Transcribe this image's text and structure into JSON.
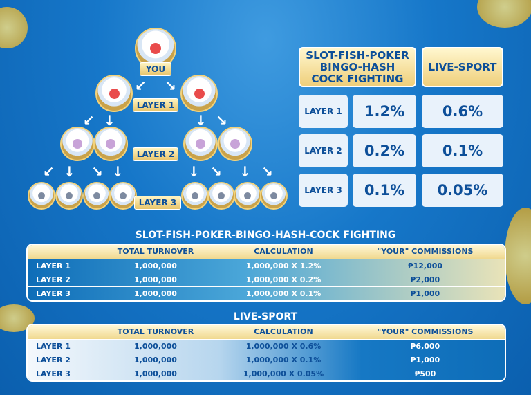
{
  "tree": {
    "you_label": "YOU",
    "layer1_label": "LAYER 1",
    "layer2_label": "LAYER 2",
    "layer3_label": "LAYER 3"
  },
  "rate_table": {
    "headers": [
      "SLOT-FISH-POKER BINGO-HASH COCK FIGHTING",
      "LIVE-SPORT"
    ],
    "rows": [
      {
        "layer": "LAYER 1",
        "slot": "1.2%",
        "live": "0.6%"
      },
      {
        "layer": "LAYER 2",
        "slot": "0.2%",
        "live": "0.1%"
      },
      {
        "layer": "LAYER 3",
        "slot": "0.1%",
        "live": "0.05%"
      }
    ]
  },
  "tables": [
    {
      "title": "SLOT-FISH-POKER-BINGO-HASH-COCK FIGHTING",
      "columns": [
        "TOTAL TURNOVER",
        "CALCULATION",
        "\"YOUR\" COMMISSIONS"
      ],
      "rows": [
        [
          "LAYER 1",
          "1,000,000",
          "1,000,000 X 1.2%",
          "₱12,000"
        ],
        [
          "LAYER 2",
          "1,000,000",
          "1,000,000 X 0.2%",
          "₱2,000"
        ],
        [
          "LAYER 3",
          "1,000,000",
          "1,000,000 X 0.1%",
          "₱1,000"
        ]
      ]
    },
    {
      "title": "LIVE-SPORT",
      "columns": [
        "TOTAL TURNOVER",
        "CALCULATION",
        "\"YOUR\" COMMISSIONS"
      ],
      "rows": [
        [
          "LAYER 1",
          "1,000,000",
          "1,000,000 X 0.6%",
          "₱6,000"
        ],
        [
          "LAYER 2",
          "1,000,000",
          "1,000,000 X 0.1%",
          "₱1,000"
        ],
        [
          "LAYER 3",
          "1,000,000",
          "1,000,000 X 0.05%",
          "₱500"
        ]
      ]
    }
  ],
  "colors": {
    "background": "#1677c9",
    "gold": "#efcf7b",
    "text_blue": "#0d4f99"
  }
}
